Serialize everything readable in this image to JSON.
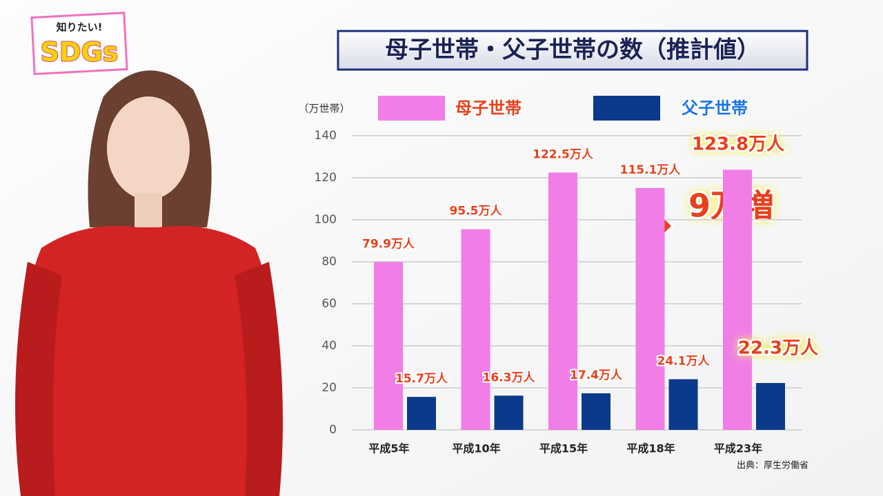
{
  "logo": {
    "top": "知りたい!",
    "main": "SDGs"
  },
  "chart_data": {
    "type": "bar",
    "title": "母子世帯・父子世帯の数（推計値）",
    "y_label": "（万世帯）",
    "categories": [
      "平成5年",
      "平成10年",
      "平成15年",
      "平成18年",
      "平成23年"
    ],
    "series": [
      {
        "name": "母子世帯",
        "color": "#f07ee6",
        "values": [
          79.9,
          95.5,
          122.5,
          115.1,
          123.8
        ],
        "value_labels": [
          "79.9万人",
          "95.5万人",
          "122.5万人",
          "115.1万人",
          "123.8万人"
        ]
      },
      {
        "name": "父子世帯",
        "color": "#0b3a8a",
        "values": [
          15.7,
          16.3,
          17.4,
          24.1,
          22.3
        ],
        "value_labels": [
          "15.7万人",
          "16.3万人",
          "17.4万人",
          "24.1万人",
          "22.3万人"
        ]
      }
    ],
    "ylim": [
      0,
      140
    ],
    "yticks": [
      0,
      20,
      40,
      60,
      80,
      100,
      120,
      140
    ],
    "grid": true,
    "annotation": "9万増",
    "source": "出典：厚生労働省"
  }
}
